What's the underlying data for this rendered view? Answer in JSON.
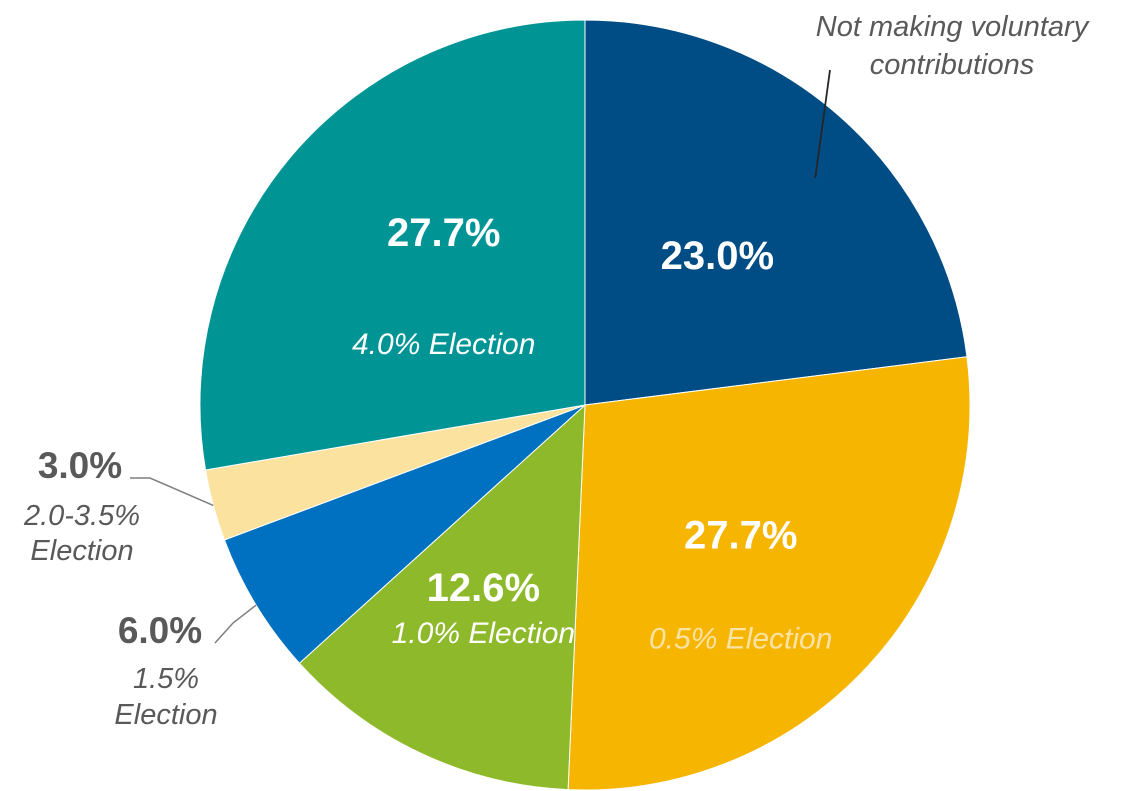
{
  "chart_data": {
    "type": "pie",
    "start_angle_deg": 0,
    "direction": "clockwise",
    "slices": [
      {
        "value": 23.0,
        "label": "23.0%",
        "sublabel": "",
        "callout": "Not making voluntary contributions",
        "color": "#004C84"
      },
      {
        "value": 27.7,
        "label": "27.7%",
        "sublabel": "0.5% Election",
        "color": "#F5B500",
        "sublabel_color": "#FBE3A6"
      },
      {
        "value": 12.6,
        "label": "12.6%",
        "sublabel": "1.0% Election",
        "color": "#8DB92A",
        "sublabel_color": "#ffffff"
      },
      {
        "value": 6.0,
        "label": "6.0%",
        "sublabel": "1.5% Election",
        "color": "#0070C0"
      },
      {
        "value": 3.0,
        "label": "3.0%",
        "sublabel": "2.0-3.5% Election",
        "color": "#FBE29F"
      },
      {
        "value": 27.7,
        "label": "27.7%",
        "sublabel": "4.0% Election",
        "color": "#009494",
        "sublabel_color": "#ffffff"
      }
    ]
  }
}
